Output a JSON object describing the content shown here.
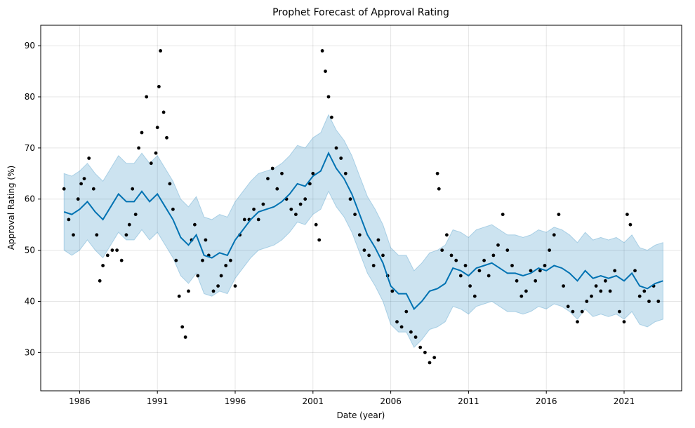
{
  "chart_data": {
    "type": "line",
    "title": "Prophet Forecast of Approval Rating",
    "xlabel": "Date (year)",
    "ylabel": "Approval Rating (%)",
    "x_ticks": [
      "1986",
      "1991",
      "1996",
      "2001",
      "2006",
      "2011",
      "2016",
      "2021"
    ],
    "y_ticks": [
      30,
      40,
      50,
      60,
      70,
      80,
      90
    ],
    "xlim": [
      1983.5,
      2024.7
    ],
    "ylim": [
      22.5,
      94
    ],
    "grid": true,
    "colors": {
      "forecast": "#0072b2",
      "interval": "#0072b2",
      "observed": "#000000"
    },
    "forecast": {
      "x": [
        1985.0,
        1985.5,
        1986.0,
        1986.5,
        1987.0,
        1987.5,
        1988.0,
        1988.5,
        1989.0,
        1989.5,
        1990.0,
        1990.5,
        1991.0,
        1991.5,
        1992.0,
        1992.5,
        1993.0,
        1993.5,
        1994.0,
        1994.5,
        1995.0,
        1995.5,
        1996.0,
        1996.5,
        1997.0,
        1997.5,
        1998.0,
        1998.5,
        1999.0,
        1999.5,
        2000.0,
        2000.5,
        2001.0,
        2001.5,
        2002.0,
        2002.5,
        2003.0,
        2003.5,
        2004.0,
        2004.5,
        2005.0,
        2005.5,
        2006.0,
        2006.5,
        2007.0,
        2007.5,
        2008.0,
        2008.5,
        2009.0,
        2009.5,
        2010.0,
        2010.5,
        2011.0,
        2011.5,
        2012.0,
        2012.5,
        2013.0,
        2013.5,
        2014.0,
        2014.5,
        2015.0,
        2015.5,
        2016.0,
        2016.5,
        2017.0,
        2017.5,
        2018.0,
        2018.5,
        2019.0,
        2019.5,
        2020.0,
        2020.5,
        2021.0,
        2021.5,
        2022.0,
        2022.5,
        2023.0,
        2023.5
      ],
      "yhat": [
        57.5,
        57.0,
        58.0,
        59.5,
        57.5,
        56.0,
        58.5,
        61.0,
        59.5,
        59.5,
        61.5,
        59.5,
        61.0,
        58.5,
        56.0,
        52.5,
        51.0,
        53.0,
        49.0,
        48.5,
        49.5,
        49.0,
        52.0,
        54.0,
        56.0,
        57.5,
        58.0,
        58.5,
        59.5,
        61.0,
        63.0,
        62.5,
        64.5,
        65.5,
        69.0,
        66.0,
        64.0,
        61.0,
        57.0,
        53.0,
        50.5,
        47.5,
        43.0,
        41.5,
        41.5,
        38.5,
        40.0,
        42.0,
        42.5,
        43.5,
        46.5,
        46.0,
        45.0,
        46.5,
        47.0,
        47.5,
        46.5,
        45.5,
        45.5,
        45.0,
        45.5,
        46.5,
        46.0,
        47.0,
        46.5,
        45.5,
        44.0,
        46.0,
        44.5,
        45.0,
        44.5,
        45.0,
        44.0,
        45.5,
        43.0,
        42.5,
        43.5,
        44.0
      ],
      "lower": [
        50.0,
        49.0,
        50.0,
        52.0,
        50.0,
        48.5,
        51.0,
        53.5,
        52.0,
        52.0,
        54.0,
        52.0,
        53.5,
        51.0,
        48.5,
        45.0,
        43.5,
        45.5,
        41.5,
        41.0,
        42.0,
        41.5,
        44.5,
        46.5,
        48.5,
        50.0,
        50.5,
        51.0,
        52.0,
        53.5,
        55.5,
        55.0,
        57.0,
        58.0,
        61.5,
        58.5,
        56.5,
        53.5,
        49.5,
        45.5,
        43.0,
        40.0,
        35.5,
        34.0,
        34.0,
        31.0,
        32.5,
        34.5,
        35.0,
        36.0,
        39.0,
        38.5,
        37.5,
        39.0,
        39.5,
        40.0,
        39.0,
        38.0,
        38.0,
        37.5,
        38.0,
        39.0,
        38.5,
        39.5,
        39.0,
        38.0,
        36.5,
        38.5,
        37.0,
        37.5,
        37.0,
        37.5,
        36.5,
        38.0,
        35.5,
        35.0,
        36.0,
        36.5
      ],
      "upper": [
        65.0,
        64.5,
        65.5,
        67.0,
        65.0,
        63.5,
        66.0,
        68.5,
        67.0,
        67.0,
        69.0,
        67.0,
        68.5,
        66.0,
        63.5,
        60.0,
        58.5,
        60.5,
        56.5,
        56.0,
        57.0,
        56.5,
        59.5,
        61.5,
        63.5,
        65.0,
        65.5,
        66.0,
        67.0,
        68.5,
        70.5,
        70.0,
        72.0,
        73.0,
        76.5,
        73.5,
        71.5,
        68.5,
        64.5,
        60.5,
        58.0,
        55.0,
        50.5,
        49.0,
        49.0,
        46.0,
        47.5,
        49.5,
        50.0,
        51.0,
        54.0,
        53.5,
        52.5,
        54.0,
        54.5,
        55.0,
        54.0,
        53.0,
        53.0,
        52.5,
        53.0,
        54.0,
        53.5,
        54.5,
        54.0,
        53.0,
        51.5,
        53.5,
        52.0,
        52.5,
        52.0,
        52.5,
        51.5,
        53.0,
        50.5,
        50.0,
        51.0,
        51.5
      ]
    },
    "observed": {
      "x": [
        1985.0,
        1985.3,
        1985.6,
        1985.9,
        1986.1,
        1986.3,
        1986.6,
        1986.9,
        1987.1,
        1987.3,
        1987.5,
        1987.8,
        1988.1,
        1988.4,
        1988.7,
        1989.0,
        1989.2,
        1989.4,
        1989.6,
        1989.8,
        1990.0,
        1990.3,
        1990.6,
        1990.9,
        1991.0,
        1991.1,
        1991.2,
        1991.4,
        1991.6,
        1991.8,
        1992.0,
        1992.2,
        1992.4,
        1992.6,
        1992.8,
        1993.0,
        1993.2,
        1993.4,
        1993.6,
        1993.9,
        1994.1,
        1994.3,
        1994.6,
        1994.9,
        1995.1,
        1995.4,
        1995.7,
        1996.0,
        1996.3,
        1996.6,
        1996.9,
        1997.2,
        1997.5,
        1997.8,
        1998.1,
        1998.4,
        1998.7,
        1999.0,
        1999.3,
        1999.6,
        1999.9,
        2000.2,
        2000.5,
        2000.8,
        2001.0,
        2001.2,
        2001.4,
        2001.6,
        2001.8,
        2002.0,
        2002.2,
        2002.5,
        2002.8,
        2003.1,
        2003.4,
        2003.7,
        2004.0,
        2004.3,
        2004.6,
        2004.9,
        2005.2,
        2005.5,
        2005.8,
        2006.1,
        2006.4,
        2006.7,
        2007.0,
        2007.3,
        2007.6,
        2007.9,
        2008.2,
        2008.5,
        2008.8,
        2009.0,
        2009.1,
        2009.3,
        2009.6,
        2009.9,
        2010.2,
        2010.5,
        2010.8,
        2011.1,
        2011.4,
        2011.7,
        2012.0,
        2012.3,
        2012.6,
        2012.9,
        2013.2,
        2013.5,
        2013.8,
        2014.1,
        2014.4,
        2014.7,
        2015.0,
        2015.3,
        2015.6,
        2015.9,
        2016.2,
        2016.5,
        2016.8,
        2017.1,
        2017.4,
        2017.7,
        2018.0,
        2018.3,
        2018.6,
        2018.9,
        2019.2,
        2019.5,
        2019.8,
        2020.1,
        2020.4,
        2020.7,
        2021.0,
        2021.2,
        2021.4,
        2021.7,
        2022.0,
        2022.3,
        2022.6,
        2022.9,
        2023.2
      ],
      "y": [
        62,
        56,
        53,
        60,
        63,
        64,
        68,
        62,
        53,
        44,
        47,
        49,
        50,
        50,
        48,
        53,
        55,
        62,
        57,
        70,
        73,
        80,
        67,
        69,
        74,
        82,
        89,
        77,
        72,
        63,
        58,
        48,
        41,
        35,
        33,
        42,
        52,
        55,
        45,
        48,
        52,
        49,
        42,
        43,
        45,
        47,
        48,
        43,
        53,
        56,
        56,
        58,
        56,
        59,
        64,
        66,
        62,
        65,
        60,
        58,
        57,
        59,
        60,
        63,
        65,
        55,
        52,
        89,
        85,
        80,
        76,
        70,
        68,
        65,
        60,
        57,
        53,
        50,
        49,
        47,
        52,
        49,
        45,
        42,
        36,
        35,
        38,
        34,
        33,
        31,
        30,
        28,
        29,
        65,
        62,
        50,
        53,
        49,
        48,
        45,
        47,
        43,
        41,
        46,
        48,
        45,
        49,
        51,
        57,
        50,
        47,
        44,
        41,
        42,
        46,
        44,
        46,
        47,
        50,
        53,
        57,
        43,
        39,
        38,
        36,
        38,
        40,
        41,
        43,
        42,
        44,
        42,
        46,
        38,
        36,
        57,
        55,
        46,
        41,
        42,
        40,
        43,
        40
      ]
    }
  }
}
